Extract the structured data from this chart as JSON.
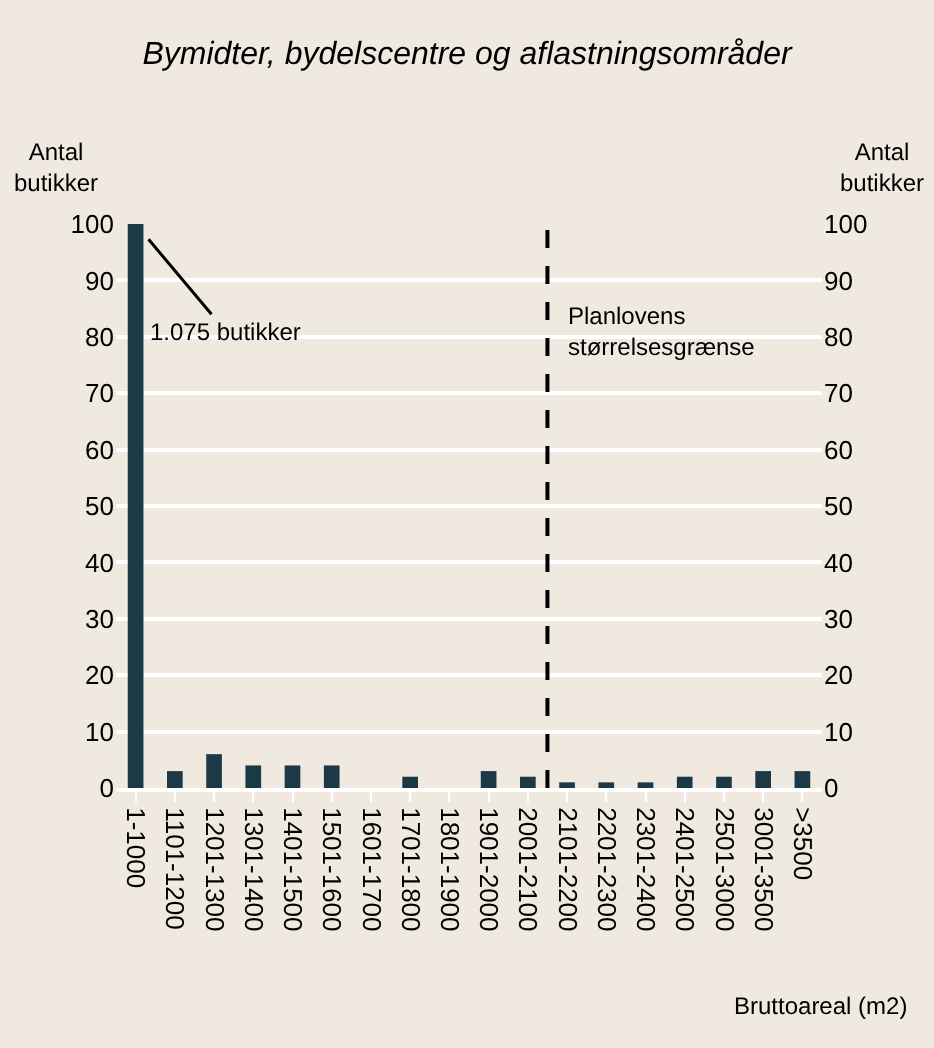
{
  "chart_data": {
    "type": "bar",
    "title": "Bymidter, bydelscentre og aflastningsområder",
    "ylabel": "Antal butikker",
    "y2label": "Antal butikker",
    "xlabel": "Bruttoareal (m2)",
    "categories": [
      "1-1000",
      "1101-1200",
      "1201-1300",
      "1301-1400",
      "1401-1500",
      "1501-1600",
      "1601-1700",
      "1701-1800",
      "1801-1900",
      "1901-2000",
      "2001-2100",
      "2101-2200",
      "2201-2300",
      "2301-2400",
      "2401-2500",
      "2501-3000",
      "3001-3500",
      ">3500"
    ],
    "values": [
      100,
      3,
      6,
      4,
      4,
      4,
      0,
      2,
      0,
      3,
      2,
      1,
      1,
      1,
      2,
      2,
      3,
      3
    ],
    "color": "#1c3a46",
    "ylim": [
      0,
      100
    ],
    "yticks": [
      0,
      10,
      20,
      30,
      40,
      50,
      60,
      70,
      80,
      90,
      100
    ],
    "y2lim": [
      0,
      100
    ],
    "y2ticks": [
      0,
      10,
      20,
      30,
      40,
      50,
      60,
      70,
      80,
      90,
      100
    ],
    "grid": "y",
    "annotations": [
      {
        "text": "1.075 butikker",
        "x": "1-1000",
        "y": 100
      }
    ],
    "ref_lines": [
      {
        "axis": "x",
        "value": "2101-2200",
        "label": "Planlovens størrelsesgrænse",
        "color": "#000000",
        "line_style": "dashed"
      }
    ]
  }
}
